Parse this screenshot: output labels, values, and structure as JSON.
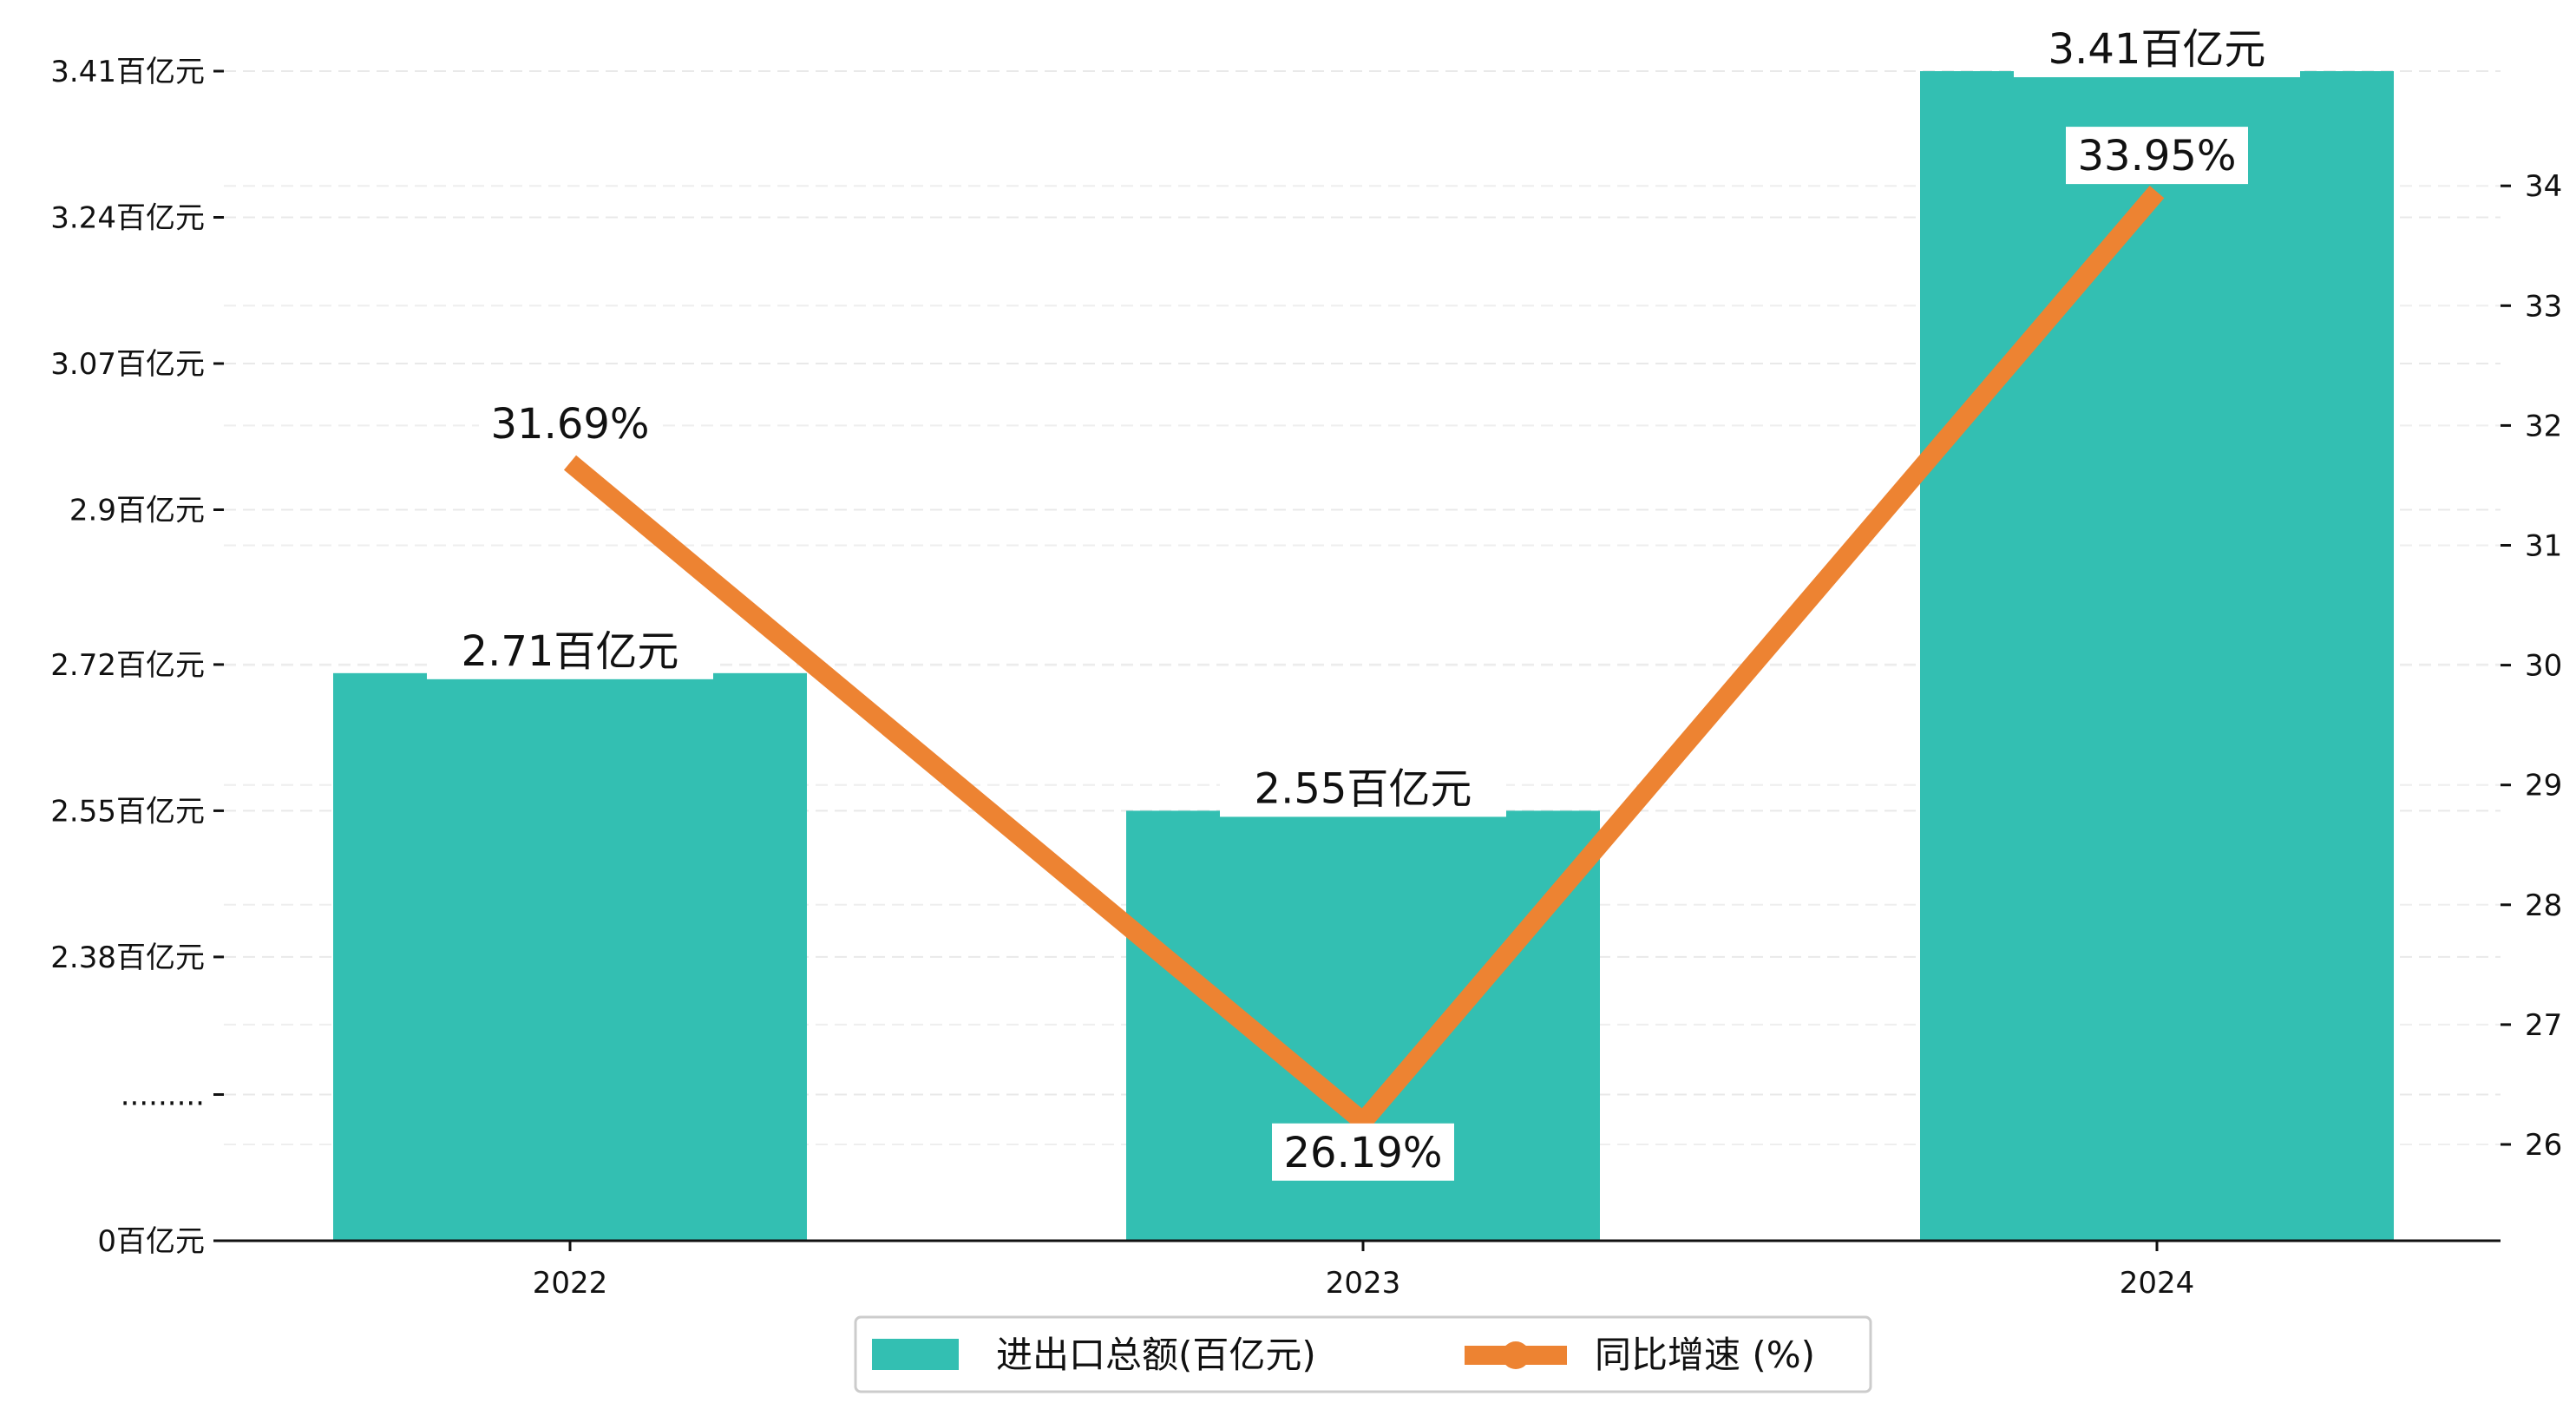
{
  "chart_data": {
    "type": "bar",
    "categories": [
      "2022",
      "2023",
      "2024"
    ],
    "series": [
      {
        "name": "进出口总额(百亿元)",
        "kind": "bar",
        "axis": "left",
        "values": [
          2.71,
          2.55,
          3.41
        ],
        "labels": [
          "2.71百亿元",
          "2.55百亿元",
          "3.41百亿元"
        ]
      },
      {
        "name": "同比增速 (%)",
        "kind": "line",
        "axis": "right",
        "values": [
          31.69,
          26.19,
          33.95
        ],
        "labels": [
          "31.69%",
          "26.19%",
          "33.95%"
        ]
      }
    ],
    "left_axis": {
      "broken": true,
      "ticks": [
        {
          "value": 0,
          "label": "0百亿元"
        },
        {
          "value": null,
          "label": "........."
        },
        {
          "value": 2.38,
          "label": "2.38百亿元"
        },
        {
          "value": 2.55,
          "label": "2.55百亿元"
        },
        {
          "value": 2.72,
          "label": "2.72百亿元"
        },
        {
          "value": 2.9,
          "label": "2.9百亿元"
        },
        {
          "value": 3.07,
          "label": "3.07百亿元"
        },
        {
          "value": 3.24,
          "label": "3.24百亿元"
        },
        {
          "value": 3.41,
          "label": "3.41百亿元"
        }
      ]
    },
    "right_axis": {
      "ticks": [
        26,
        27,
        28,
        29,
        30,
        31,
        32,
        33,
        34
      ],
      "ylim": [
        25.2,
        35.0
      ]
    },
    "grid": true,
    "legend_position": "bottom-center",
    "colors": {
      "bar": "#33bfb2",
      "line": "#ed8332"
    }
  }
}
